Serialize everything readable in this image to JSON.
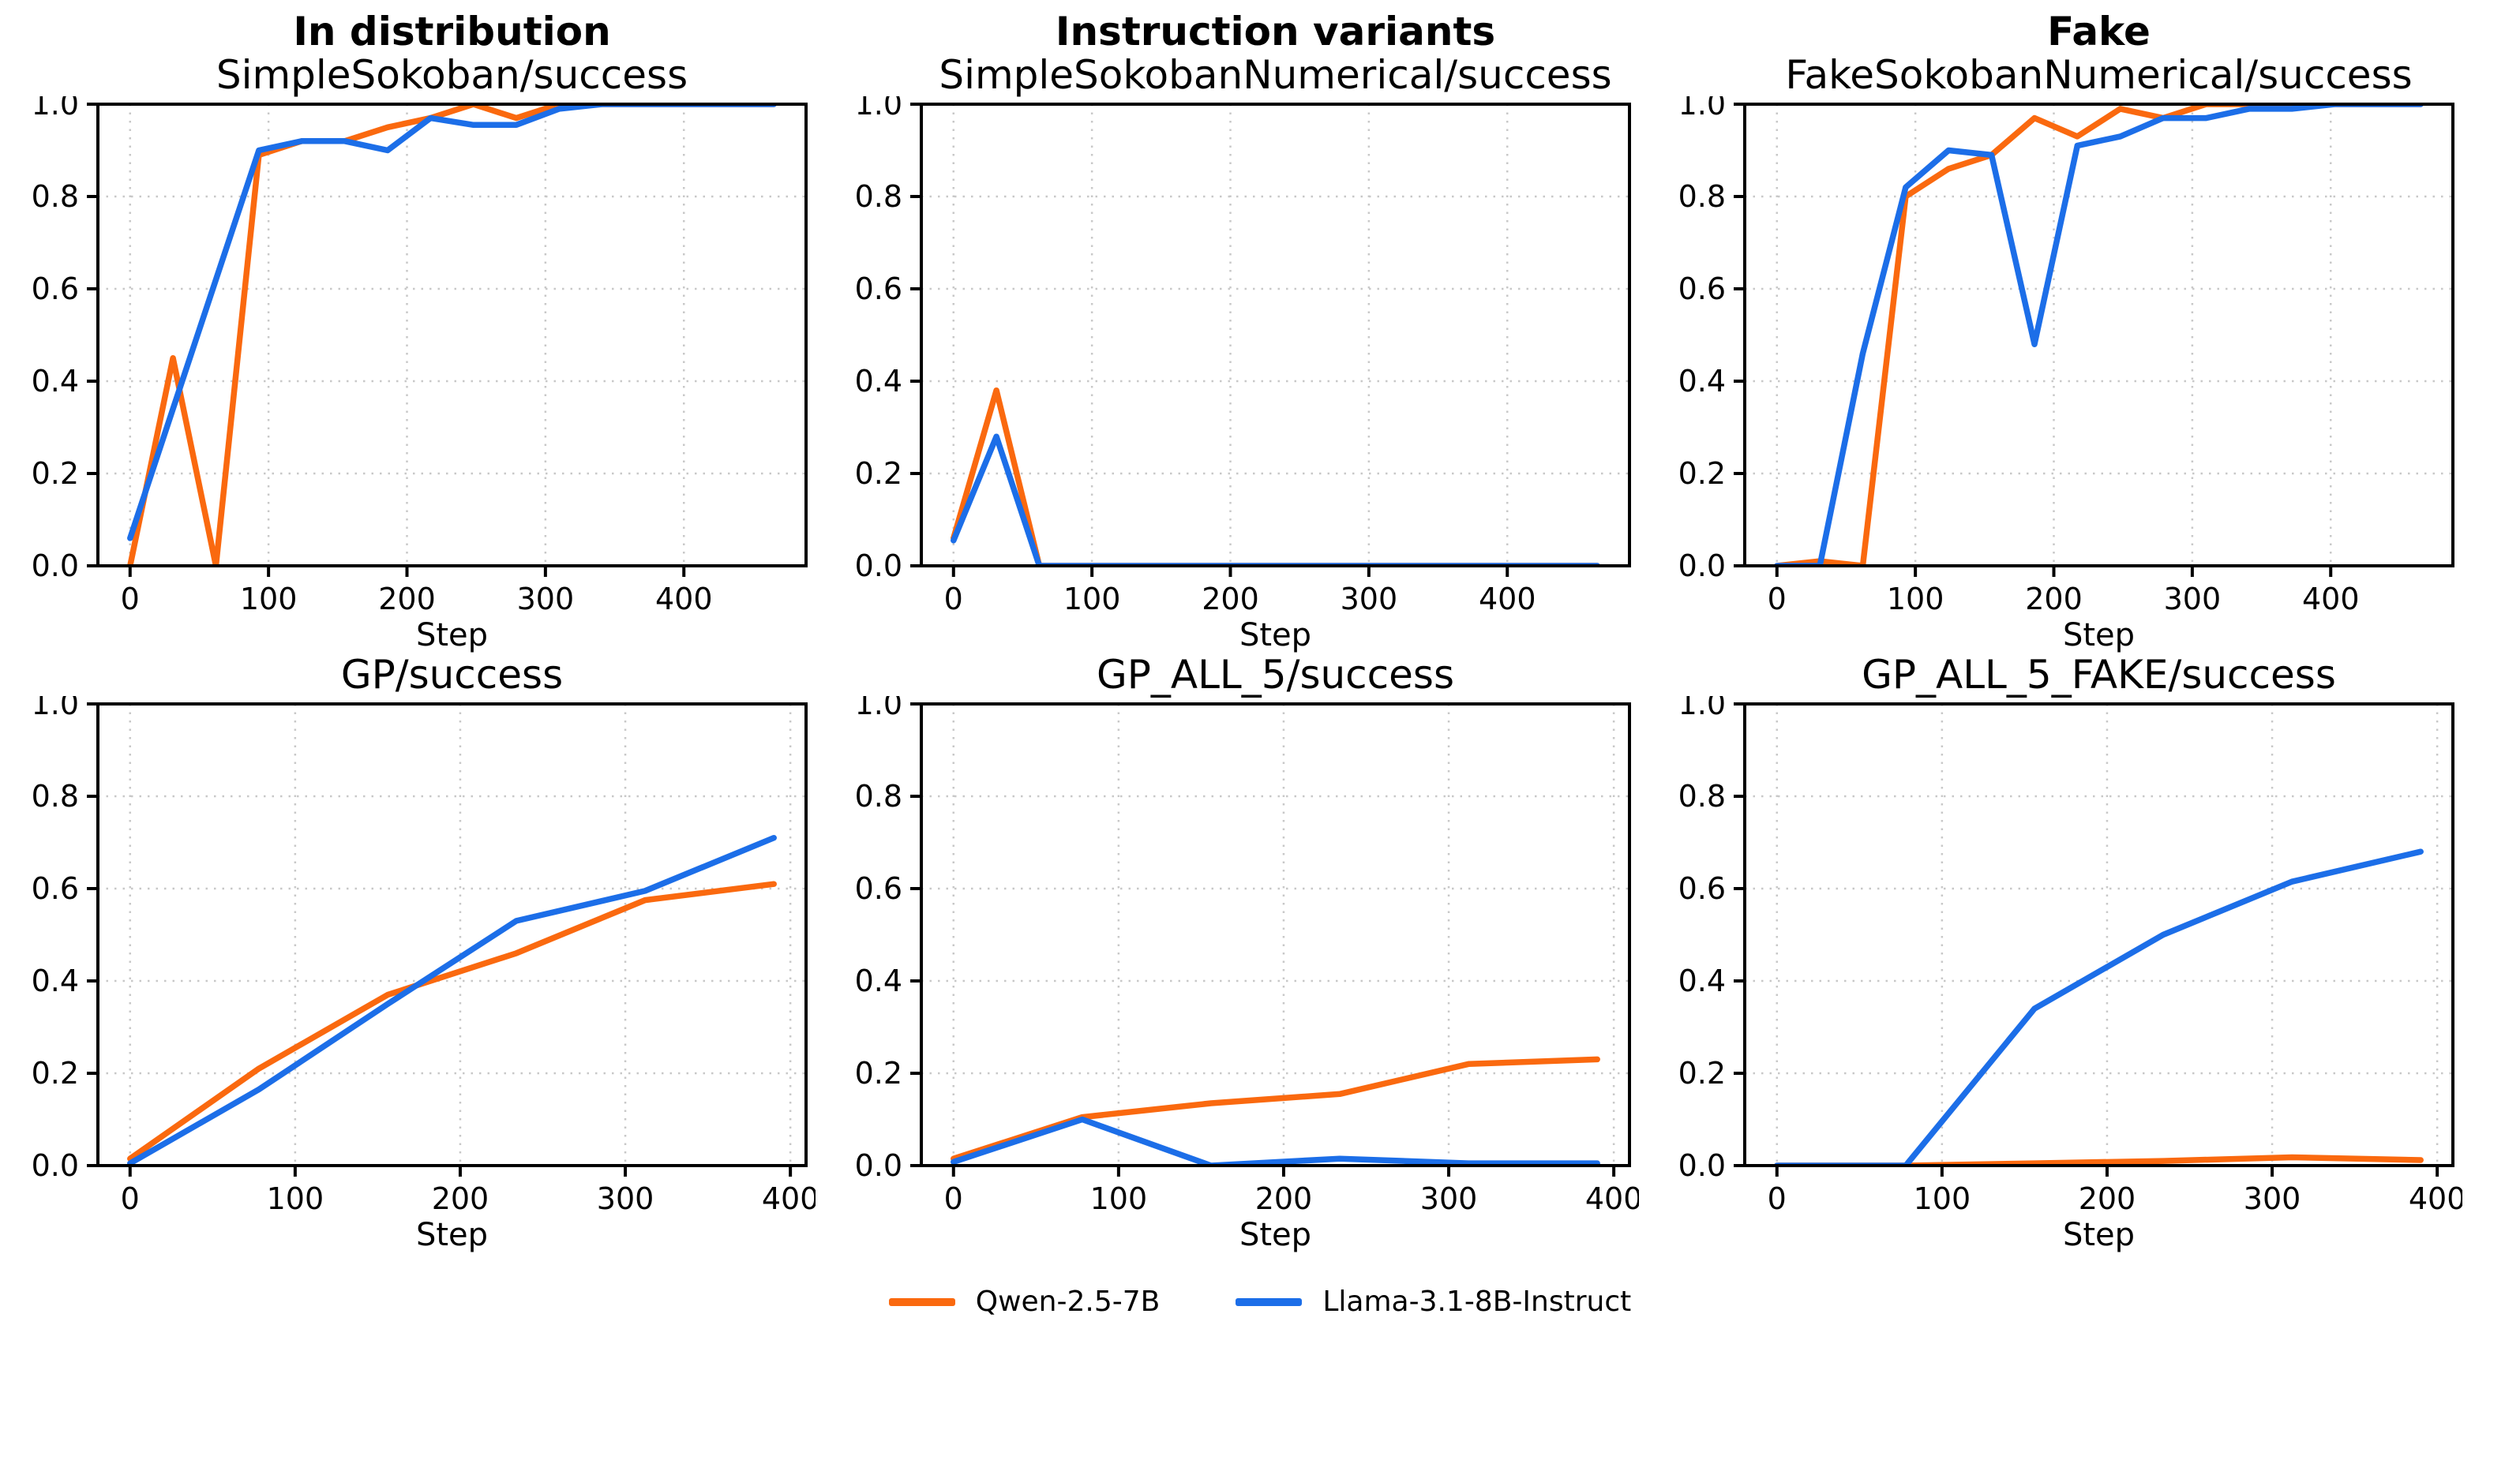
{
  "figure": {
    "background": "#ffffff",
    "text_color": "#000000",
    "grid_color": "#c8c8c8",
    "legend": [
      {
        "label": "Qwen-2.5-7B",
        "color": "#fa690f"
      },
      {
        "label": "Llama-3.1-8B-Instruct",
        "color": "#1c6ee8"
      }
    ]
  },
  "chart_data": [
    {
      "type": "line",
      "col_title": "In distribution",
      "title": "SimpleSokoban/success",
      "xlabel": "Step",
      "xlim": [
        -23.25,
        488.25
      ],
      "ylim": [
        0,
        1
      ],
      "xticks": [
        0,
        100,
        200,
        300,
        400
      ],
      "yticks": [
        0.0,
        0.2,
        0.4,
        0.6,
        0.8,
        1.0
      ],
      "ytick_labels": [
        "0.0",
        "0.2",
        "0.4",
        "0.6",
        "0.8",
        "1.0"
      ],
      "grid": true,
      "x": [
        0,
        31,
        62,
        93,
        124,
        155,
        186,
        217,
        248,
        279,
        310,
        341,
        372,
        403,
        434,
        465
      ],
      "series": [
        {
          "name": "Qwen-2.5-7B",
          "color": "#fa690f",
          "values": [
            0.0,
            0.45,
            0.0,
            0.89,
            0.92,
            0.92,
            0.95,
            0.97,
            1.0,
            0.97,
            1.0,
            1.0,
            1.0,
            1.0,
            1.0,
            1.0
          ]
        },
        {
          "name": "Llama-3.1-8B-Instruct",
          "color": "#1c6ee8",
          "values": [
            0.06,
            0.34,
            0.62,
            0.9,
            0.92,
            0.92,
            0.9,
            0.97,
            0.955,
            0.955,
            0.99,
            1.0,
            1.0,
            1.0,
            1.0,
            1.0
          ]
        }
      ]
    },
    {
      "type": "line",
      "col_title": "Instruction variants",
      "title": "SimpleSokobanNumerical/success",
      "xlabel": "Step",
      "xlim": [
        -23.25,
        488.25
      ],
      "ylim": [
        0,
        1
      ],
      "xticks": [
        0,
        100,
        200,
        300,
        400
      ],
      "yticks": [
        0.0,
        0.2,
        0.4,
        0.6,
        0.8,
        1.0
      ],
      "ytick_labels": [
        "0.0",
        "0.2",
        "0.4",
        "0.6",
        "0.8",
        "1.0"
      ],
      "grid": true,
      "x": [
        0,
        31,
        62,
        93,
        124,
        155,
        186,
        217,
        248,
        279,
        310,
        341,
        372,
        403,
        434,
        465
      ],
      "series": [
        {
          "name": "Qwen-2.5-7B",
          "color": "#fa690f",
          "values": [
            0.06,
            0.38,
            0.0,
            0.0,
            0.0,
            0.0,
            0.0,
            0.0,
            0.0,
            0.0,
            0.0,
            0.0,
            0.0,
            0.0,
            0.0,
            0.0
          ]
        },
        {
          "name": "Llama-3.1-8B-Instruct",
          "color": "#1c6ee8",
          "values": [
            0.055,
            0.28,
            0.0,
            0.0,
            0.0,
            0.0,
            0.0,
            0.0,
            0.0,
            0.0,
            0.0,
            0.0,
            0.0,
            0.0,
            0.0,
            0.0
          ]
        }
      ]
    },
    {
      "type": "line",
      "col_title": "Fake",
      "title": "FakeSokobanNumerical/success",
      "xlabel": "Step",
      "xlim": [
        -23.25,
        488.25
      ],
      "ylim": [
        0,
        1
      ],
      "xticks": [
        0,
        100,
        200,
        300,
        400
      ],
      "yticks": [
        0.0,
        0.2,
        0.4,
        0.6,
        0.8,
        1.0
      ],
      "ytick_labels": [
        "0.0",
        "0.2",
        "0.4",
        "0.6",
        "0.8",
        "1.0"
      ],
      "grid": true,
      "x": [
        0,
        31,
        62,
        93,
        124,
        155,
        186,
        217,
        248,
        279,
        310,
        341,
        372,
        403,
        434,
        465
      ],
      "series": [
        {
          "name": "Qwen-2.5-7B",
          "color": "#fa690f",
          "values": [
            0.0,
            0.01,
            0.0,
            0.8,
            0.86,
            0.89,
            0.97,
            0.93,
            0.99,
            0.97,
            1.0,
            1.0,
            1.0,
            1.0,
            1.0,
            1.0
          ]
        },
        {
          "name": "Llama-3.1-8B-Instruct",
          "color": "#1c6ee8",
          "values": [
            0.0,
            0.0,
            0.46,
            0.82,
            0.9,
            0.89,
            0.48,
            0.91,
            0.93,
            0.97,
            0.97,
            0.99,
            0.99,
            1.0,
            1.0,
            1.0
          ]
        }
      ]
    },
    {
      "type": "line",
      "title": "GP/success",
      "xlabel": "Step",
      "xlim": [
        -19.5,
        409.5
      ],
      "ylim": [
        0,
        1
      ],
      "xticks": [
        0,
        100,
        200,
        300,
        400
      ],
      "yticks": [
        0.0,
        0.2,
        0.4,
        0.6,
        0.8,
        1.0
      ],
      "ytick_labels": [
        "0.0",
        "0.2",
        "0.4",
        "0.6",
        "0.8",
        "1.0"
      ],
      "grid": true,
      "x": [
        0,
        78,
        156,
        234,
        312,
        390
      ],
      "series": [
        {
          "name": "Qwen-2.5-7B",
          "color": "#fa690f",
          "values": [
            0.015,
            0.21,
            0.37,
            0.46,
            0.575,
            0.61
          ]
        },
        {
          "name": "Llama-3.1-8B-Instruct",
          "color": "#1c6ee8",
          "values": [
            0.005,
            0.165,
            0.35,
            0.53,
            0.595,
            0.71
          ]
        }
      ]
    },
    {
      "type": "line",
      "title": "GP_ALL_5/success",
      "xlabel": "Step",
      "xlim": [
        -19.5,
        409.5
      ],
      "ylim": [
        0,
        1
      ],
      "xticks": [
        0,
        100,
        200,
        300,
        400
      ],
      "yticks": [
        0.0,
        0.2,
        0.4,
        0.6,
        0.8,
        1.0
      ],
      "ytick_labels": [
        "0.0",
        "0.2",
        "0.4",
        "0.6",
        "0.8",
        "1.0"
      ],
      "grid": true,
      "x": [
        0,
        78,
        156,
        234,
        312,
        390
      ],
      "series": [
        {
          "name": "Qwen-2.5-7B",
          "color": "#fa690f",
          "values": [
            0.015,
            0.105,
            0.135,
            0.155,
            0.22,
            0.23
          ]
        },
        {
          "name": "Llama-3.1-8B-Instruct",
          "color": "#1c6ee8",
          "values": [
            0.008,
            0.1,
            0.0,
            0.015,
            0.005,
            0.005
          ]
        }
      ]
    },
    {
      "type": "line",
      "title": "GP_ALL_5_FAKE/success",
      "xlabel": "Step",
      "xlim": [
        -19.5,
        409.5
      ],
      "ylim": [
        0,
        1
      ],
      "xticks": [
        0,
        100,
        200,
        300,
        400
      ],
      "yticks": [
        0.0,
        0.2,
        0.4,
        0.6,
        0.8,
        1.0
      ],
      "ytick_labels": [
        "0.0",
        "0.2",
        "0.4",
        "0.6",
        "0.8",
        "1.0"
      ],
      "grid": true,
      "x": [
        0,
        78,
        156,
        234,
        312,
        390
      ],
      "series": [
        {
          "name": "Qwen-2.5-7B",
          "color": "#fa690f",
          "values": [
            0.0,
            0.0,
            0.005,
            0.01,
            0.018,
            0.012
          ]
        },
        {
          "name": "Llama-3.1-8B-Instruct",
          "color": "#1c6ee8",
          "values": [
            0.0,
            0.0,
            0.34,
            0.5,
            0.615,
            0.68
          ]
        }
      ]
    }
  ]
}
